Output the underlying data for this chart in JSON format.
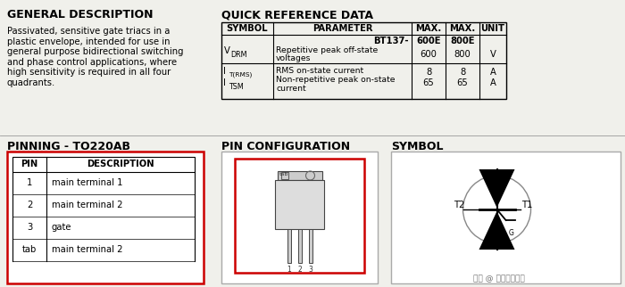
{
  "bg_color": "#f0f0eb",
  "gen_desc_title": "GENERAL DESCRIPTION",
  "gen_desc_text_lines": [
    "Passivated, sensitive gate triacs in a",
    "plastic envelope, intended for use in",
    "general purpose bidirectional switching",
    "and phase control applications, where",
    "high sensitivity is required in all four",
    "quadrants."
  ],
  "quick_ref_title": "QUICK REFERENCE DATA",
  "pinning_title": "PINNING - TO220AB",
  "pin_config_title": "PIN CONFIGURATION",
  "symbol_title": "SYMBOL",
  "pin_data": [
    [
      "1",
      "main terminal 1"
    ],
    [
      "2",
      "main terminal 2"
    ],
    [
      "3",
      "gate"
    ],
    [
      "tab",
      "main terminal 2"
    ]
  ],
  "red_border": "#cc0000",
  "fs_title": 9.0,
  "fs_body": 7.2,
  "fs_small": 5.8
}
